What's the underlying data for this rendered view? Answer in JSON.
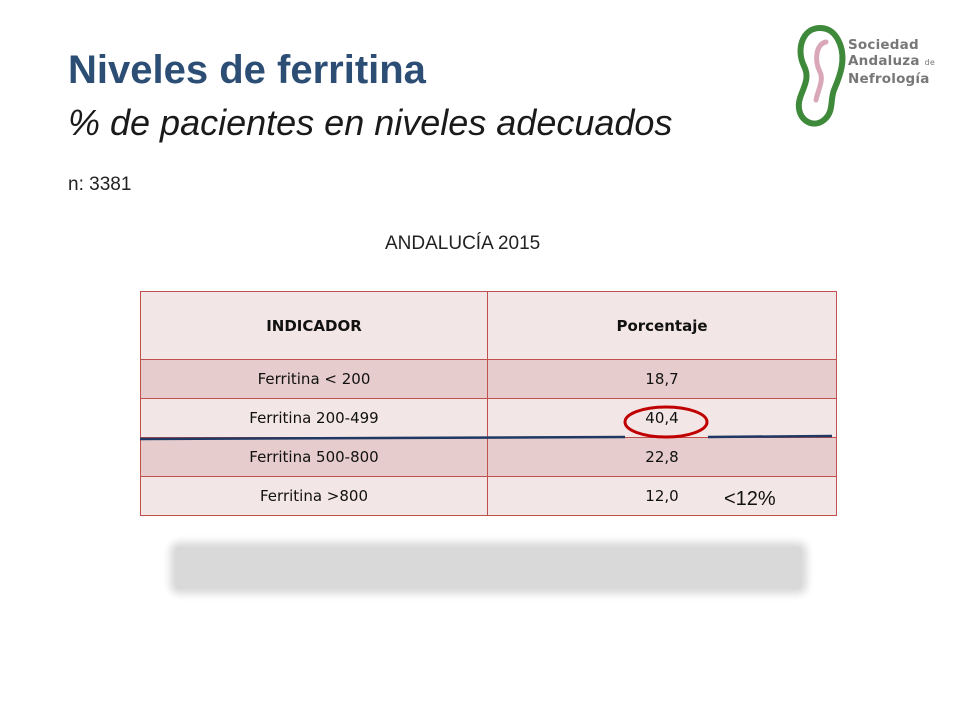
{
  "header": {
    "title": "Niveles de ferritina",
    "subtitle": "% de pacientes en niveles adecuados"
  },
  "sample": {
    "label": "n: 3381"
  },
  "region_label": "ANDALUCÍA 2015",
  "logo": {
    "line1": "Sociedad",
    "line2": "Andaluza",
    "line2_small": "de",
    "line3": "Nefrología",
    "colors": {
      "green": "#3f8a3a",
      "pink": "#d9a7b8"
    }
  },
  "table": {
    "headers": [
      "INDICADOR",
      "Porcentaje"
    ],
    "rows": [
      {
        "indicator": "Ferritina < 200",
        "percent": "18,7"
      },
      {
        "indicator": "Ferritina 200-499",
        "percent": "40,4"
      },
      {
        "indicator": "Ferritina 500-800",
        "percent": "22,8"
      },
      {
        "indicator": "Ferritina >800",
        "percent": "12,0"
      }
    ],
    "colors": {
      "border": "#c0504d",
      "row_dark": "#e6cccc",
      "row_light": "#f3e6e6"
    }
  },
  "annotation": {
    "note": "<12%",
    "circle_color": "#c00000",
    "line_color": "#1f3864"
  }
}
